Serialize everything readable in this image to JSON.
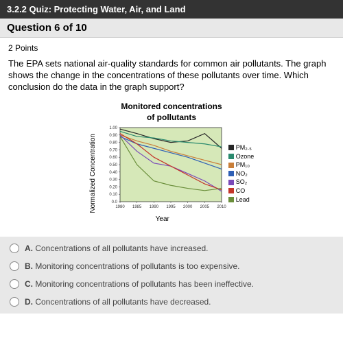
{
  "header": {
    "title": "3.2.2 Quiz: Protecting Water, Air, and Land"
  },
  "question": {
    "number_label": "Question 6 of 10",
    "points_label": "2 Points",
    "text": "The EPA sets national air-quality standards for common air pollutants. The graph shows the change in the concentrations of these pollutants over time. Which conclusion do the data in the graph support?"
  },
  "chart": {
    "type": "line",
    "title": "Monitored concentrations",
    "subtitle": "of pollutants",
    "ylabel": "Normalized Concentration",
    "xlabel": "Year",
    "xlim": [
      1980,
      2010
    ],
    "ylim": [
      0.0,
      1.0
    ],
    "xticks": [
      1980,
      1985,
      1990,
      1995,
      2000,
      2005,
      2010
    ],
    "yticks": [
      0.0,
      0.1,
      0.2,
      0.3,
      0.4,
      0.5,
      0.6,
      0.7,
      0.8,
      0.9,
      1.0
    ],
    "xtick_labels": [
      "1980",
      "1985",
      "1990",
      "1995",
      "2000",
      "2005",
      "2010"
    ],
    "ytick_labels": [
      "0.0",
      "0.10",
      "0.20",
      "0.30",
      "0.40",
      "0.50",
      "0.60",
      "0.70",
      "0.80",
      "0.90",
      "1.00"
    ],
    "label_fontsize": 10,
    "tick_fontsize": 8,
    "background_color": "#d6e8b8",
    "grid_color": "#9aad7a",
    "line_width": 1.2,
    "series": [
      {
        "name": "PM2.5",
        "label": "PM₂.₅",
        "color": "#262626",
        "x": [
          1980,
          1985,
          1990,
          1995,
          2000,
          2005,
          2010
        ],
        "y": [
          0.98,
          0.92,
          0.85,
          0.8,
          0.82,
          0.92,
          0.72
        ]
      },
      {
        "name": "Ozone",
        "label": "Ozone",
        "color": "#2a8a6e",
        "x": [
          1980,
          1985,
          1990,
          1995,
          2000,
          2005,
          2010
        ],
        "y": [
          0.95,
          0.88,
          0.86,
          0.82,
          0.8,
          0.78,
          0.74
        ]
      },
      {
        "name": "PM10",
        "label": "PM₁₀",
        "color": "#c97f3a",
        "x": [
          1980,
          1985,
          1990,
          1995,
          2000,
          2005,
          2010
        ],
        "y": [
          0.9,
          0.82,
          0.76,
          0.68,
          0.62,
          0.56,
          0.5
        ]
      },
      {
        "name": "NO2",
        "label": "NO₂",
        "color": "#2e5fb5",
        "x": [
          1980,
          1985,
          1990,
          1995,
          2000,
          2005,
          2010
        ],
        "y": [
          0.88,
          0.78,
          0.72,
          0.66,
          0.6,
          0.52,
          0.44
        ]
      },
      {
        "name": "SO2",
        "label": "SO₂",
        "color": "#7a49b8",
        "x": [
          1980,
          1985,
          1990,
          1995,
          2000,
          2005,
          2010
        ],
        "y": [
          0.9,
          0.68,
          0.52,
          0.48,
          0.38,
          0.28,
          0.14
        ]
      },
      {
        "name": "CO",
        "label": "CO",
        "color": "#c4352a",
        "x": [
          1980,
          1985,
          1990,
          1995,
          2000,
          2005,
          2010
        ],
        "y": [
          0.92,
          0.78,
          0.6,
          0.48,
          0.36,
          0.24,
          0.16
        ]
      },
      {
        "name": "Lead",
        "label": "Lead",
        "color": "#6a8e3a",
        "x": [
          1980,
          1985,
          1990,
          1995,
          2000,
          2005,
          2010
        ],
        "y": [
          0.88,
          0.5,
          0.28,
          0.22,
          0.18,
          0.15,
          0.18
        ]
      }
    ]
  },
  "options": {
    "A": "Concentrations of all pollutants have increased.",
    "B": "Monitoring concentrations of pollutants is too expensive.",
    "C": "Monitoring concentrations of pollutants has been ineffective.",
    "D": "Concentrations of all pollutants have decreased."
  }
}
